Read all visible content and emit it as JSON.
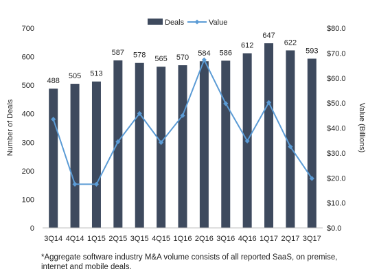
{
  "chart_data": {
    "type": "bar+line",
    "categories": [
      "3Q14",
      "4Q14",
      "1Q15",
      "2Q15",
      "3Q15",
      "4Q15",
      "1Q16",
      "2Q16",
      "3Q16",
      "4Q16",
      "1Q17",
      "2Q17",
      "3Q17"
    ],
    "series": [
      {
        "name": "Deals",
        "type": "bar",
        "axis": "left",
        "values": [
          488,
          505,
          513,
          587,
          578,
          565,
          570,
          584,
          586,
          612,
          647,
          622,
          593
        ]
      },
      {
        "name": "Value",
        "type": "line",
        "axis": "right",
        "values": [
          43.5,
          17.5,
          17.5,
          34.5,
          45.8,
          34.2,
          45,
          67.3,
          49.8,
          34.8,
          50.2,
          32.5,
          19.8
        ]
      }
    ],
    "ylabel": "Number of Deals",
    "y2label": "Value (Billions)",
    "ylim": [
      0,
      700
    ],
    "y2lim": [
      0,
      80
    ],
    "yticks": [
      "0",
      "100",
      "200",
      "300",
      "400",
      "500",
      "600",
      "700"
    ],
    "y2ticks": [
      "$0.0",
      "$10.0",
      "$20.0",
      "$30.0",
      "$40.0",
      "$50.0",
      "$60.0",
      "$70.0",
      "$80.0"
    ],
    "legend_position": "top-center",
    "grid": false,
    "colors": {
      "bar": "#3e4a5e",
      "line": "#5b9bd5"
    }
  },
  "footnote": "*Aggregate software industry M&A volume consists of all reported SaaS, on premise, internet and mobile deals."
}
